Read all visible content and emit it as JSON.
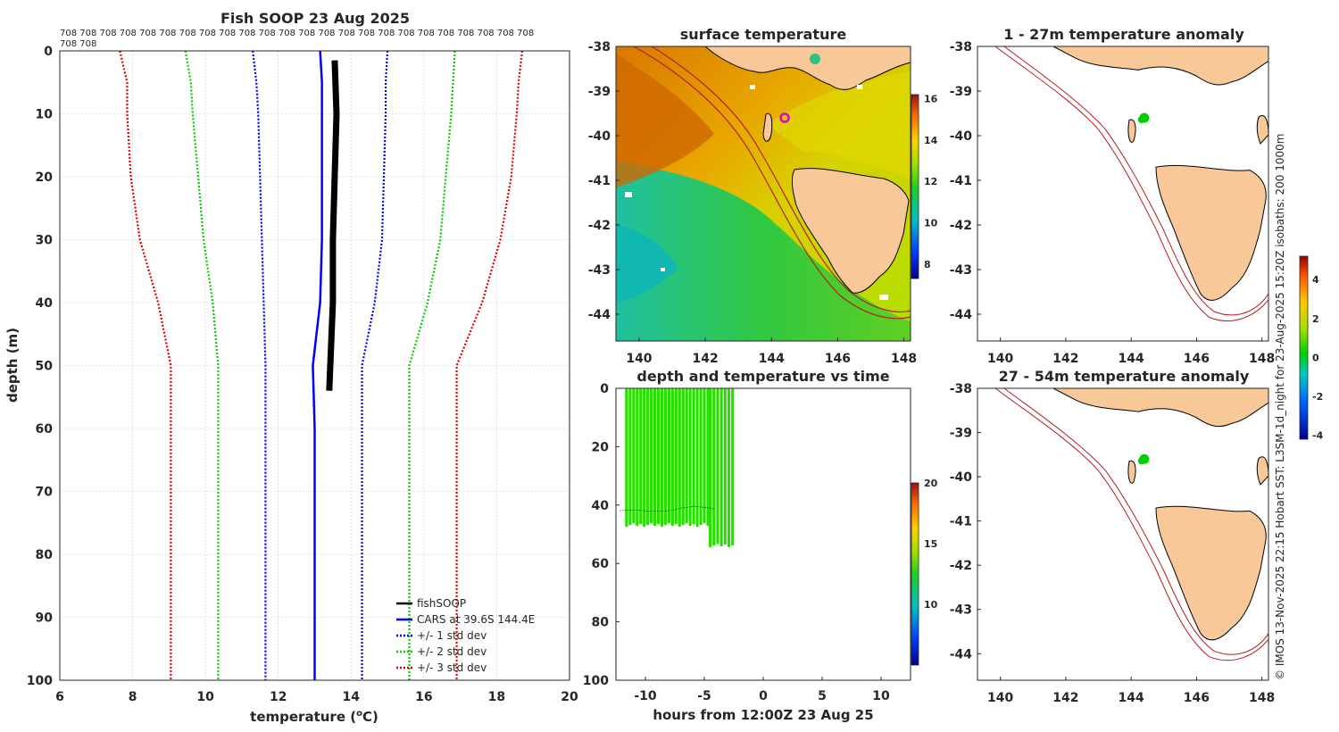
{
  "chart_data": [
    {
      "type": "line",
      "title": "Fish SOOP 23 Aug 2025",
      "top_labels": [
        "708 708 708 708 708 708 708 708 708 708 708 708 708 708 708 708 708 708 708 708 708 708 708 708",
        "708 708"
      ],
      "xlabel": "temperature (°C)",
      "ylabel": "depth (m)",
      "xlim": [
        6,
        20
      ],
      "ylim": [
        0,
        100
      ],
      "xticks": [
        6,
        8,
        10,
        12,
        14,
        16,
        18,
        20
      ],
      "yticks": [
        0,
        10,
        20,
        30,
        40,
        50,
        60,
        70,
        80,
        90,
        100
      ],
      "grid": true,
      "legend_position": "bottom-right",
      "legend": [
        "fishSOOP",
        "CARS at 39.6S 144.4E",
        "+/- 1 std dev",
        "+/- 2 std dev",
        "+/- 3 std dev"
      ],
      "depths": [
        0,
        5,
        10,
        20,
        30,
        40,
        50,
        60,
        70,
        80,
        90,
        100
      ],
      "series": [
        {
          "name": "CARS at 39.6S 144.4E",
          "color": "#0000ff",
          "style": "solid",
          "values": [
            13.15,
            13.2,
            13.2,
            13.2,
            13.2,
            13.15,
            12.95,
            13.0,
            13.0,
            13.0,
            13.0,
            13.0
          ]
        },
        {
          "name": "+1 std dev",
          "color": "#0000ff",
          "style": "dotted",
          "values": [
            15.0,
            14.95,
            14.95,
            14.9,
            14.85,
            14.65,
            14.3,
            14.3,
            14.3,
            14.3,
            14.3,
            14.3
          ]
        },
        {
          "name": "-1 std dev",
          "color": "#0000ff",
          "style": "dotted",
          "values": [
            11.3,
            11.4,
            11.45,
            11.5,
            11.55,
            11.6,
            11.65,
            11.65,
            11.65,
            11.65,
            11.65,
            11.65
          ]
        },
        {
          "name": "+2 std dev",
          "color": "#00cc00",
          "style": "dotted",
          "values": [
            16.85,
            16.8,
            16.75,
            16.6,
            16.45,
            16.1,
            15.6,
            15.6,
            15.6,
            15.6,
            15.6,
            15.6
          ]
        },
        {
          "name": "-2 std dev",
          "color": "#00cc00",
          "style": "dotted",
          "values": [
            9.45,
            9.6,
            9.65,
            9.8,
            9.95,
            10.2,
            10.35,
            10.35,
            10.35,
            10.35,
            10.35,
            10.35
          ]
        },
        {
          "name": "+3 std dev",
          "color": "#dd0000",
          "style": "dotted",
          "values": [
            18.7,
            18.6,
            18.55,
            18.4,
            18.1,
            17.6,
            16.9,
            16.9,
            16.9,
            16.9,
            16.9,
            16.9
          ]
        },
        {
          "name": "-3 std dev",
          "color": "#dd0000",
          "style": "dotted",
          "values": [
            7.65,
            7.85,
            7.85,
            7.95,
            8.2,
            8.7,
            9.05,
            9.05,
            9.05,
            9.05,
            9.05,
            9.05
          ]
        }
      ],
      "fishsoop": {
        "name": "fishSOOP",
        "color": "#000000",
        "depths": [
          1.5,
          10,
          20,
          30,
          40,
          47,
          54
        ],
        "values": [
          13.55,
          13.6,
          13.55,
          13.5,
          13.5,
          13.45,
          13.4
        ]
      }
    },
    {
      "type": "heatmap",
      "title": "surface temperature",
      "xlim": [
        139.3,
        148.2
      ],
      "ylim": [
        -44.6,
        -38
      ],
      "xticks": [
        140,
        142,
        144,
        146,
        148
      ],
      "yticks": [
        -38,
        -39,
        -40,
        -41,
        -42,
        -43,
        -44
      ],
      "colorbar": {
        "min": 7.3,
        "max": 16.2,
        "ticks": [
          8,
          10,
          12,
          14,
          16
        ]
      },
      "marker": {
        "lon": 144.4,
        "lat": -39.6
      }
    },
    {
      "type": "scatter",
      "title": "depth and temperature vs time",
      "xlabel": "hours from 12:00Z 23 Aug 25",
      "xlim": [
        -12.5,
        12.5
      ],
      "ylim": [
        0,
        100
      ],
      "xticks": [
        -10,
        -5,
        0,
        5,
        10
      ],
      "yticks": [
        0,
        20,
        40,
        60,
        80,
        100
      ],
      "colorbar": {
        "min": 5,
        "max": 20,
        "ticks": [
          10,
          15,
          20
        ]
      },
      "blocks": [
        {
          "x0": -11.6,
          "x1": -4.7,
          "depth_min": 0.5,
          "depth_max": 47,
          "color": "#28e000"
        },
        {
          "x0": -4.5,
          "x1": -2.6,
          "depth_min": 0.5,
          "depth_max": 54,
          "color": "#28e000"
        }
      ]
    },
    {
      "type": "map",
      "title": "1 - 27m temperature anomaly",
      "xlim": [
        139.3,
        148.2
      ],
      "ylim": [
        -44.6,
        -38
      ],
      "xticks": [
        140,
        142,
        144,
        146,
        148
      ],
      "yticks": [
        -38,
        -39,
        -40,
        -41,
        -42,
        -43,
        -44
      ],
      "marker": {
        "lon": 144.4,
        "lat": -39.6,
        "anomaly": 0
      }
    },
    {
      "type": "map",
      "title": "27 - 54m temperature anomaly",
      "xlim": [
        139.3,
        148.2
      ],
      "ylim": [
        -44.6,
        -38
      ],
      "xticks": [
        140,
        142,
        144,
        146,
        148
      ],
      "yticks": [
        -38,
        -39,
        -40,
        -41,
        -42,
        -43,
        -44
      ],
      "marker": {
        "lon": 144.4,
        "lat": -39.6,
        "anomaly": 0
      }
    }
  ],
  "anomaly_colorbar": {
    "min": -4.2,
    "max": 5.2,
    "ticks": [
      -4,
      -2,
      0,
      2,
      4
    ]
  },
  "side_note": "© IMOS 13-Nov-2025 22:15 Hobart SST: L3SM-1d_night for 23-Aug-2025 15:20Z isobaths: 200  1000m",
  "colors": {
    "land": "#f8c898",
    "isobath": "#b41e1e",
    "marker_ring": "#e600c8"
  }
}
